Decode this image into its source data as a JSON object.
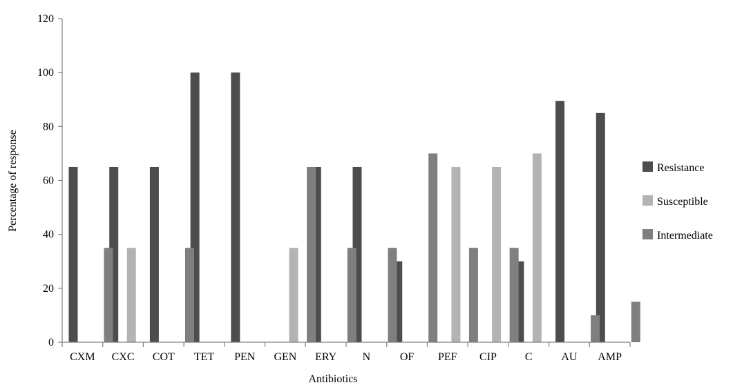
{
  "chart_data": {
    "type": "bar",
    "xlabel": "Antibiotics",
    "ylabel": "Percentage of response",
    "ylim": [
      0,
      120
    ],
    "yticks": [
      0,
      20,
      40,
      60,
      80,
      100,
      120
    ],
    "grid": false,
    "legend_position": "right",
    "categories": [
      "CXM",
      "CXC",
      "COT",
      "TET",
      "PEN",
      "GEN",
      "ERY",
      "N",
      "OF",
      "PEF",
      "CIP",
      "C",
      "AU",
      "AMP"
    ],
    "series": [
      {
        "name": "Resistance",
        "color": "#4d4d4d",
        "values": [
          65,
          65,
          65,
          100,
          100,
          0,
          65,
          65,
          30,
          0,
          0,
          30,
          89.5,
          85
        ]
      },
      {
        "name": "Susceptible",
        "color": "#b3b3b3",
        "values": [
          0,
          35,
          0,
          0,
          0,
          35,
          0,
          0,
          0,
          65,
          65,
          70,
          0,
          0
        ]
      },
      {
        "name": "Intermediate",
        "color": "#7f7f7f",
        "values": [
          35,
          0,
          35,
          0,
          0,
          65,
          35,
          35,
          70,
          35,
          35,
          0,
          10,
          15
        ]
      }
    ]
  }
}
